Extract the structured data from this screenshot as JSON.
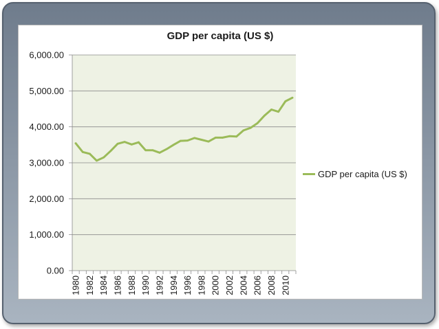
{
  "chart_data": {
    "type": "line",
    "title": "GDP per capita (US $)",
    "xlabel": "",
    "ylabel": "",
    "ylim": [
      0,
      6000
    ],
    "y_ticks": [
      "0.00",
      "1,000.00",
      "2,000.00",
      "3,000.00",
      "4,000.00",
      "5,000.00",
      "6,000.00"
    ],
    "x_tick_labels": [
      "1980",
      "1982",
      "1984",
      "1986",
      "1988",
      "1990",
      "1992",
      "1994",
      "1996",
      "1998",
      "2000",
      "2002",
      "2004",
      "2006",
      "2008",
      "2010"
    ],
    "x": [
      1980,
      1981,
      1982,
      1983,
      1984,
      1985,
      1986,
      1987,
      1988,
      1989,
      1990,
      1991,
      1992,
      1993,
      1994,
      1995,
      1996,
      1997,
      1998,
      1999,
      2000,
      2001,
      2002,
      2003,
      2004,
      2005,
      2006,
      2007,
      2008,
      2009,
      2010,
      2011
    ],
    "series": [
      {
        "name": "GDP per capita (US $)",
        "color": "#9bbb59",
        "values": [
          3540,
          3300,
          3250,
          3060,
          3150,
          3330,
          3530,
          3580,
          3510,
          3570,
          3350,
          3350,
          3280,
          3380,
          3500,
          3610,
          3620,
          3690,
          3640,
          3590,
          3700,
          3700,
          3740,
          3730,
          3900,
          3970,
          4100,
          4310,
          4480,
          4420,
          4710,
          4810
        ]
      }
    ],
    "grid": "horizontal",
    "legend_position": "right",
    "plot_background": "#eef2e4"
  }
}
